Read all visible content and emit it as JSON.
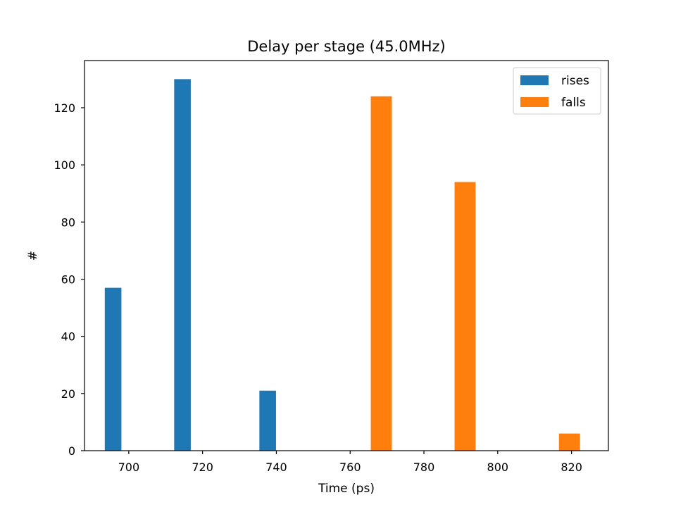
{
  "chart_data": {
    "type": "bar",
    "title": "Delay per stage (45.0MHz)",
    "xlabel": "Time (ps)",
    "ylabel": "#",
    "xlim": [
      688,
      830
    ],
    "ylim": [
      0,
      136.5
    ],
    "xticks": [
      700,
      720,
      740,
      760,
      780,
      800,
      820
    ],
    "yticks": [
      0,
      20,
      40,
      60,
      80,
      100,
      120
    ],
    "grid": false,
    "legend_position": "top-right",
    "series": [
      {
        "name": "rises",
        "color": "#1f77b4",
        "bars": [
          {
            "x0": 693.5,
            "x1": 698.0,
            "value": 57
          },
          {
            "x0": 712.3,
            "x1": 716.8,
            "value": 130
          },
          {
            "x0": 735.4,
            "x1": 739.9,
            "value": 21
          }
        ]
      },
      {
        "name": "falls",
        "color": "#ff7f0e",
        "bars": [
          {
            "x0": 765.6,
            "x1": 771.3,
            "value": 124
          },
          {
            "x0": 788.3,
            "x1": 794.0,
            "value": 94
          },
          {
            "x0": 816.6,
            "x1": 822.3,
            "value": 6
          }
        ]
      }
    ]
  }
}
